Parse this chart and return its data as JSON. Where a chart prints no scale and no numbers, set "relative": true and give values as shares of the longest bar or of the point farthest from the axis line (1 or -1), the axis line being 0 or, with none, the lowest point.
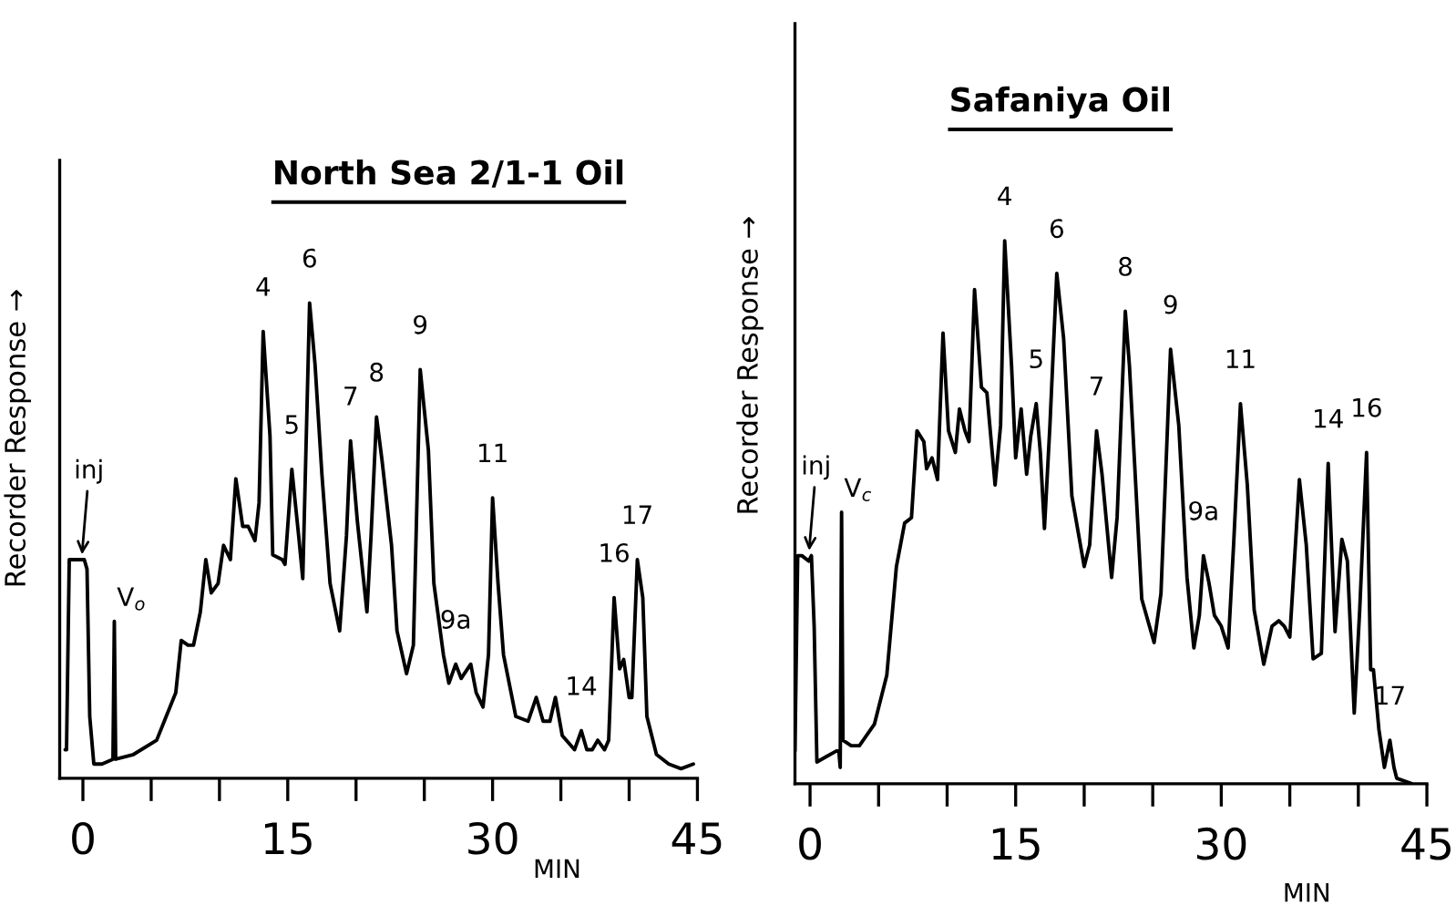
{
  "chart_data": [
    {
      "type": "line",
      "title": "North Sea 2/1-1 Oil",
      "xlabel": "MIN",
      "ylabel": "Recorder Response →",
      "relative": true,
      "tick_labels": "x",
      "xlim": [
        -1.7,
        45
      ],
      "xticks": [
        0,
        {
          "value": 5,
          "label": null
        },
        {
          "value": 10,
          "label": null
        },
        15,
        {
          "value": 20,
          "label": null
        },
        {
          "value": 25,
          "label": null
        },
        30,
        {
          "value": 35,
          "label": null
        },
        {
          "value": 40,
          "label": null
        },
        45
      ],
      "series": [
        {
          "color": "#000000",
          "x": [
            -1.3,
            -1.2,
            -1.0,
            -0.9,
            -0.4,
            0.1,
            0.3,
            0.5,
            0.8,
            1.4,
            2.2,
            2.3,
            2.4,
            3.7,
            5.4,
            6.1,
            6.8,
            7.2,
            7.7,
            8.1,
            8.6,
            9.0,
            9.4,
            9.9,
            10.3,
            10.8,
            11.2,
            11.7,
            12.1,
            12.6,
            12.9,
            13.2,
            13.7,
            13.9,
            14.6,
            14.8,
            15.3,
            15.8,
            16.1,
            16.6,
            17.0,
            17.5,
            18.1,
            18.8,
            19.3,
            19.6,
            20.1,
            20.8,
            21.1,
            21.5,
            21.9,
            22.6,
            23.0,
            23.7,
            24.2,
            24.7,
            25.3,
            25.7,
            26.4,
            26.8,
            27.3,
            27.7,
            28.4,
            28.8,
            29.3,
            29.7,
            30.0,
            30.4,
            30.8,
            31.7,
            32.6,
            33.2,
            33.7,
            34.2,
            34.6,
            35.1,
            36.0,
            36.5,
            36.9,
            37.3,
            37.7,
            38.2,
            38.5,
            38.9,
            39.3,
            39.6,
            40.0,
            40.2,
            40.6,
            41.0,
            41.3,
            42.0,
            42.9,
            43.8,
            44.7
          ],
          "values": [
            0.06,
            0.06,
            0.46,
            0.46,
            0.46,
            0.46,
            0.44,
            0.13,
            0.03,
            0.03,
            0.04,
            0.33,
            0.04,
            0.05,
            0.08,
            0.13,
            0.18,
            0.29,
            0.28,
            0.28,
            0.35,
            0.46,
            0.39,
            0.41,
            0.49,
            0.46,
            0.63,
            0.53,
            0.53,
            0.5,
            0.58,
            0.94,
            0.72,
            0.47,
            0.46,
            0.45,
            0.65,
            0.51,
            0.42,
            1.0,
            0.87,
            0.64,
            0.41,
            0.31,
            0.51,
            0.71,
            0.54,
            0.35,
            0.51,
            0.76,
            0.67,
            0.49,
            0.31,
            0.22,
            0.28,
            0.86,
            0.69,
            0.41,
            0.26,
            0.2,
            0.24,
            0.21,
            0.24,
            0.18,
            0.15,
            0.26,
            0.59,
            0.41,
            0.26,
            0.13,
            0.12,
            0.17,
            0.12,
            0.12,
            0.17,
            0.09,
            0.06,
            0.1,
            0.06,
            0.06,
            0.08,
            0.06,
            0.08,
            0.38,
            0.23,
            0.25,
            0.17,
            0.17,
            0.46,
            0.38,
            0.13,
            0.05,
            0.03,
            0.02,
            0.03
          ]
        }
      ],
      "annotations": [
        {
          "text": "inj",
          "x": -0.1,
          "y": 0.46
        },
        {
          "text": "V$_{o}$",
          "x": 2.3,
          "y": 0.33
        },
        {
          "text": "4",
          "x": 13.2,
          "y": 0.94
        },
        {
          "text": "5",
          "x": 15.3,
          "y": 0.65
        },
        {
          "text": "6",
          "x": 16.6,
          "y": 1.0
        },
        {
          "text": "7",
          "x": 19.6,
          "y": 0.71
        },
        {
          "text": "8",
          "x": 21.5,
          "y": 0.76
        },
        {
          "text": "9",
          "x": 24.7,
          "y": 0.86
        },
        {
          "text": "9a",
          "x": 27.3,
          "y": 0.24
        },
        {
          "text": "11",
          "x": 30.0,
          "y": 0.59
        },
        {
          "text": "14",
          "x": 36.5,
          "y": 0.1
        },
        {
          "text": "16",
          "x": 38.9,
          "y": 0.38
        },
        {
          "text": "17",
          "x": 40.6,
          "y": 0.46
        }
      ]
    },
    {
      "type": "line",
      "title": "Safaniya Oil",
      "xlabel": "MIN",
      "ylabel": "Recorder Response →",
      "relative": true,
      "tick_labels": "x",
      "xlim": [
        -1.1,
        45
      ],
      "xticks": [
        0,
        {
          "value": 5,
          "label": null
        },
        {
          "value": 10,
          "label": null
        },
        15,
        {
          "value": 20,
          "label": null
        },
        {
          "value": 25,
          "label": null
        },
        30,
        {
          "value": 35,
          "label": null
        },
        {
          "value": 40,
          "label": null
        },
        45
      ],
      "series": [
        {
          "color": "#000000",
          "x": [
            -1.1,
            -0.9,
            -0.6,
            -0.1,
            0.1,
            0.3,
            0.5,
            1.2,
            1.9,
            2.1,
            2.2,
            2.3,
            2.4,
            3.0,
            3.6,
            4.7,
            5.6,
            6.3,
            6.9,
            7.4,
            7.8,
            8.3,
            8.5,
            8.9,
            9.3,
            9.7,
            10.1,
            10.6,
            10.9,
            11.3,
            11.6,
            12.0,
            12.5,
            12.9,
            13.5,
            13.9,
            14.2,
            14.7,
            15.0,
            15.4,
            15.8,
            16.1,
            16.5,
            16.8,
            17.1,
            17.5,
            18.0,
            18.5,
            19.1,
            20.0,
            20.4,
            20.9,
            21.3,
            22.0,
            22.4,
            23.0,
            23.3,
            24.2,
            25.1,
            25.6,
            26.3,
            26.9,
            27.5,
            28.0,
            28.4,
            28.7,
            29.1,
            29.5,
            30.0,
            30.5,
            30.9,
            31.4,
            31.9,
            32.4,
            33.1,
            33.7,
            34.2,
            34.6,
            35.0,
            35.7,
            36.2,
            36.7,
            37.3,
            37.8,
            38.3,
            38.8,
            39.2,
            39.7,
            40.1,
            40.6,
            40.9,
            41.1,
            41.5,
            41.9,
            42.3,
            42.6,
            42.8,
            43.9
          ],
          "values": [
            0.06,
            0.42,
            0.42,
            0.41,
            0.42,
            0.29,
            0.04,
            0.05,
            0.06,
            0.06,
            0.03,
            0.5,
            0.08,
            0.07,
            0.07,
            0.11,
            0.2,
            0.4,
            0.48,
            0.49,
            0.65,
            0.63,
            0.58,
            0.6,
            0.56,
            0.83,
            0.65,
            0.61,
            0.69,
            0.65,
            0.63,
            0.91,
            0.73,
            0.72,
            0.55,
            0.66,
            1.0,
            0.77,
            0.6,
            0.69,
            0.57,
            0.64,
            0.7,
            0.61,
            0.47,
            0.66,
            0.94,
            0.82,
            0.53,
            0.4,
            0.44,
            0.65,
            0.57,
            0.38,
            0.49,
            0.87,
            0.77,
            0.34,
            0.26,
            0.35,
            0.8,
            0.66,
            0.38,
            0.25,
            0.31,
            0.42,
            0.37,
            0.31,
            0.29,
            0.25,
            0.44,
            0.7,
            0.55,
            0.32,
            0.22,
            0.29,
            0.3,
            0.29,
            0.27,
            0.56,
            0.44,
            0.23,
            0.24,
            0.59,
            0.28,
            0.45,
            0.41,
            0.13,
            0.32,
            0.61,
            0.21,
            0.21,
            0.1,
            0.03,
            0.08,
            0.03,
            0.01,
            0.0
          ]
        }
      ],
      "annotations": [
        {
          "text": "inj",
          "x": -0.1,
          "y": 0.42
        },
        {
          "text": "V$_{c}$",
          "x": 2.3,
          "y": 0.5
        },
        {
          "text": "4",
          "x": 14.2,
          "y": 1.0
        },
        {
          "text": "5",
          "x": 16.5,
          "y": 0.7
        },
        {
          "text": "6",
          "x": 18.0,
          "y": 0.94
        },
        {
          "text": "7",
          "x": 20.9,
          "y": 0.65
        },
        {
          "text": "8",
          "x": 23.0,
          "y": 0.87
        },
        {
          "text": "9",
          "x": 26.3,
          "y": 0.8
        },
        {
          "text": "9a",
          "x": 28.7,
          "y": 0.42
        },
        {
          "text": "11",
          "x": 31.4,
          "y": 0.7
        },
        {
          "text": "14",
          "x": 37.8,
          "y": 0.59
        },
        {
          "text": "16",
          "x": 40.6,
          "y": 0.61
        },
        {
          "text": "17",
          "x": 42.3,
          "y": 0.08
        }
      ]
    }
  ]
}
